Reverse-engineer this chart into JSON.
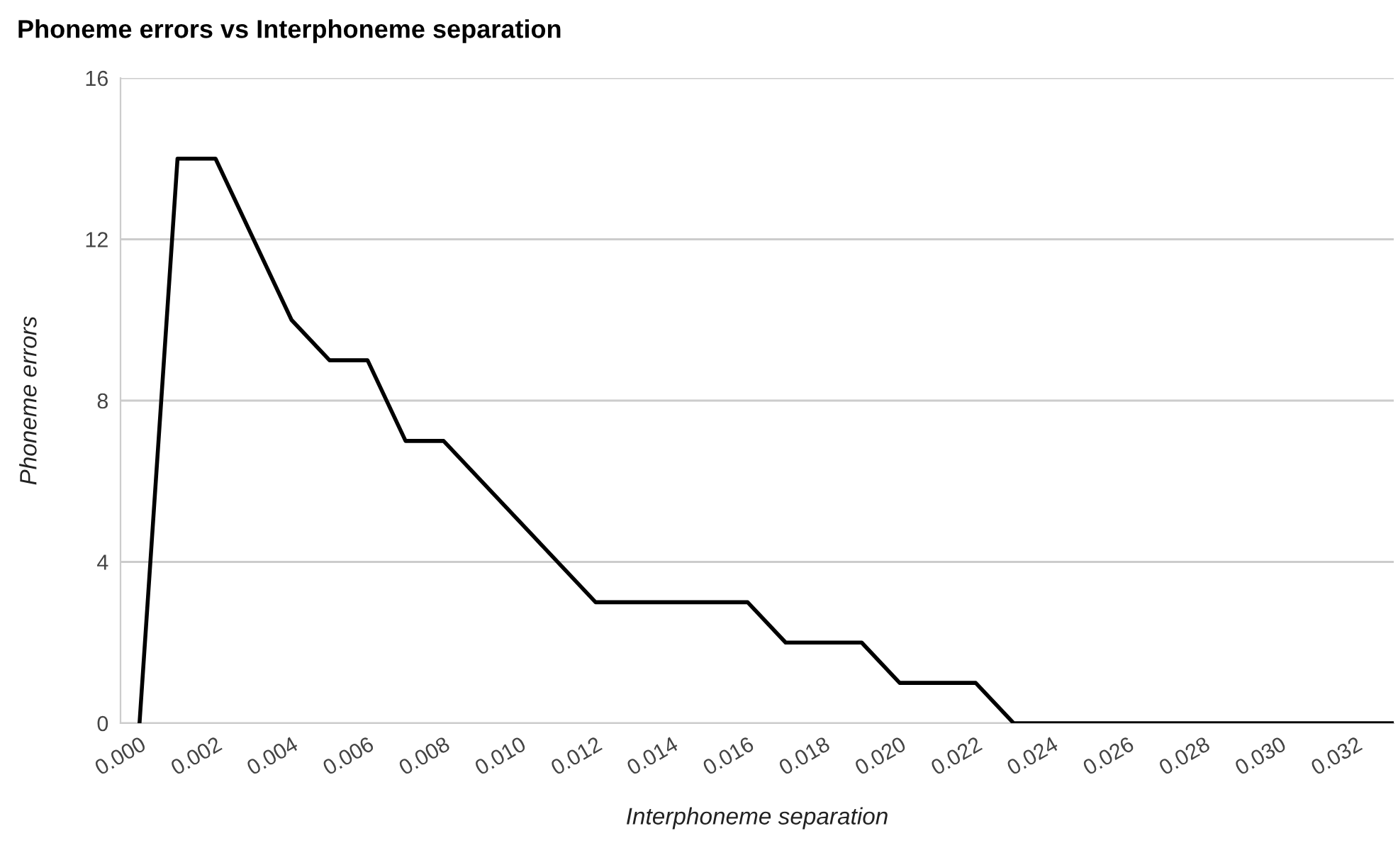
{
  "chart_data": {
    "type": "line",
    "title": "Phoneme errors vs Interphoneme separation",
    "xlabel": "Interphoneme separation",
    "ylabel": "Phoneme errors",
    "x": [
      0.0,
      0.001,
      0.002,
      0.004,
      0.005,
      0.006,
      0.007,
      0.008,
      0.012,
      0.016,
      0.017,
      0.019,
      0.02,
      0.022,
      0.023,
      0.033
    ],
    "series": [
      {
        "color": "#000000",
        "values": [
          0,
          14,
          14,
          10,
          9,
          9,
          7,
          7,
          3,
          3,
          2,
          2,
          1,
          1,
          0,
          0
        ]
      }
    ],
    "xlim": [
      -0.0005,
      0.033
    ],
    "xticks": [
      {
        "value": 0.0,
        "label": "0.000"
      },
      {
        "value": 0.002,
        "label": "0.002"
      },
      {
        "value": 0.004,
        "label": "0.004"
      },
      {
        "value": 0.006,
        "label": "0.006"
      },
      {
        "value": 0.008,
        "label": "0.008"
      },
      {
        "value": 0.01,
        "label": "0.010"
      },
      {
        "value": 0.012,
        "label": "0.012"
      },
      {
        "value": 0.014,
        "label": "0.014"
      },
      {
        "value": 0.016,
        "label": "0.016"
      },
      {
        "value": 0.018,
        "label": "0.018"
      },
      {
        "value": 0.02,
        "label": "0.020"
      },
      {
        "value": 0.022,
        "label": "0.022"
      },
      {
        "value": 0.024,
        "label": "0.024"
      },
      {
        "value": 0.026,
        "label": "0.026"
      },
      {
        "value": 0.028,
        "label": "0.028"
      },
      {
        "value": 0.03,
        "label": "0.030"
      },
      {
        "value": 0.032,
        "label": "0.032"
      }
    ],
    "ylim": [
      0,
      16
    ],
    "yticks": [
      0,
      4,
      8,
      12,
      16
    ],
    "grid": "y",
    "marker": "none",
    "line_style": "solid"
  }
}
